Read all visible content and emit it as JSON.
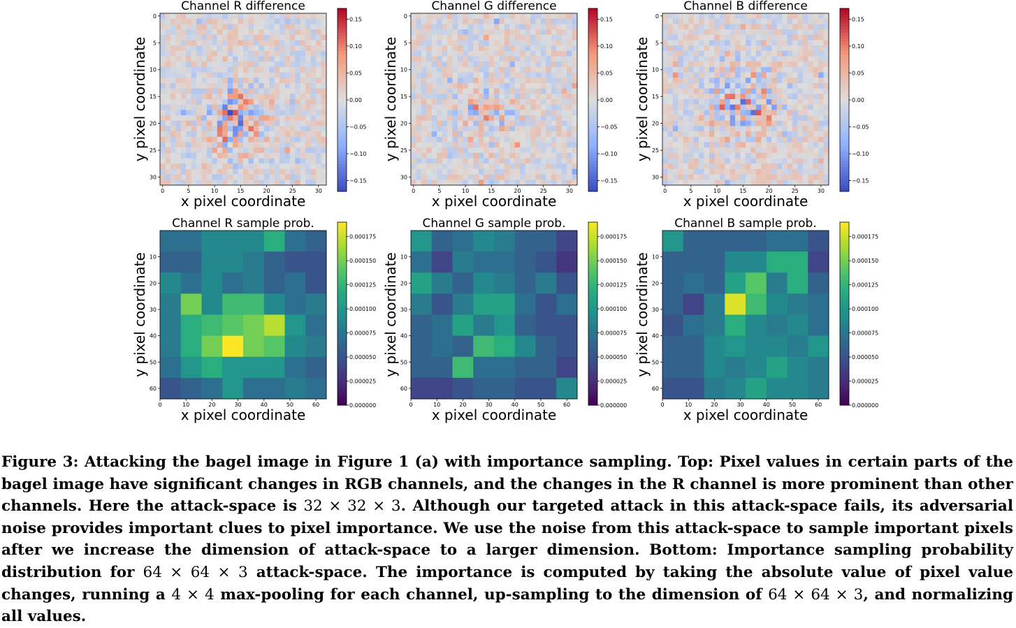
{
  "charts": [
    {
      "title": "Channel R difference",
      "xlabel": "x pixel coordinate",
      "ylabel": "y pixel coordinate"
    },
    {
      "title": "Channel G difference",
      "xlabel": "x pixel coordinate",
      "ylabel": "y pixel coordinate"
    },
    {
      "title": "Channel B difference",
      "xlabel": "x pixel coordinate",
      "ylabel": "y pixel coordinate"
    },
    {
      "title": "Channel R sample prob.",
      "xlabel": "x pixel coordinate",
      "ylabel": "y pixel coordinate"
    },
    {
      "title": "Channel G sample prob.",
      "xlabel": "x pixel coordinate",
      "ylabel": "y pixel coordinate"
    },
    {
      "title": "Channel B sample prob.",
      "xlabel": "x pixel coordinate",
      "ylabel": "y pixel coordinate"
    }
  ],
  "chart_data": [
    {
      "type": "heatmap",
      "title": "Channel R difference",
      "xlabel": "x pixel coordinate",
      "ylabel": "y pixel coordinate",
      "grid_size": 32,
      "colormap": "coolwarm",
      "vmin": -0.17,
      "vmax": 0.17,
      "xticks": [
        "0",
        "5",
        "10",
        "15",
        "20",
        "25",
        "30"
      ],
      "yticks": [
        "0",
        "5",
        "10",
        "15",
        "20",
        "25",
        "30"
      ],
      "colorbar_ticks": [
        "0.15",
        "0.10",
        "0.05",
        "0.00",
        "−0.05",
        "−0.10",
        "−0.15"
      ],
      "colorbar_values": [
        0.15,
        0.1,
        0.05,
        0.0,
        -0.05,
        -0.1,
        -0.15
      ],
      "grid": false
    },
    {
      "type": "heatmap",
      "title": "Channel G difference",
      "xlabel": "x pixel coordinate",
      "ylabel": "y pixel coordinate",
      "grid_size": 32,
      "colormap": "coolwarm",
      "vmin": -0.17,
      "vmax": 0.17,
      "xticks": [
        "0",
        "5",
        "10",
        "15",
        "20",
        "25",
        "30"
      ],
      "yticks": [
        "0",
        "5",
        "10",
        "15",
        "20",
        "25",
        "30"
      ],
      "colorbar_ticks": [
        "0.15",
        "0.10",
        "0.05",
        "0.00",
        "−0.05",
        "−0.10",
        "−0.15"
      ],
      "colorbar_values": [
        0.15,
        0.1,
        0.05,
        0.0,
        -0.05,
        -0.1,
        -0.15
      ],
      "grid": false
    },
    {
      "type": "heatmap",
      "title": "Channel B difference",
      "xlabel": "x pixel coordinate",
      "ylabel": "y pixel coordinate",
      "grid_size": 32,
      "colormap": "coolwarm",
      "vmin": -0.17,
      "vmax": 0.17,
      "xticks": [
        "0",
        "5",
        "10",
        "15",
        "20",
        "25",
        "30"
      ],
      "yticks": [
        "0",
        "5",
        "10",
        "15",
        "20",
        "25",
        "30"
      ],
      "colorbar_ticks": [
        "0.15",
        "0.10",
        "0.05",
        "0.00",
        "−0.05",
        "−0.10",
        "−0.15"
      ],
      "colorbar_values": [
        0.15,
        0.1,
        0.05,
        0.0,
        -0.05,
        -0.1,
        -0.15
      ],
      "grid": false
    },
    {
      "type": "heatmap",
      "title": "Channel R sample prob.",
      "xlabel": "x pixel coordinate",
      "ylabel": "y pixel coordinate",
      "colormap": "viridis",
      "vmin": 0,
      "vmax": 0.00019,
      "extent": [
        0,
        64
      ],
      "xticks": [
        "0",
        "10",
        "20",
        "30",
        "40",
        "50",
        "60"
      ],
      "yticks": [
        "10",
        "20",
        "30",
        "40",
        "50",
        "60"
      ],
      "colorbar_ticks": [
        "0.000175",
        "0.000150",
        "0.000125",
        "0.000100",
        "0.000075",
        "0.000050",
        "0.000025",
        "0.000000"
      ],
      "colorbar_values": [
        0.000175,
        0.00015,
        0.000125,
        0.0001,
        7.5e-05,
        5e-05,
        2.5e-05,
        0
      ],
      "grid": false,
      "values": [
        [
          7e-05,
          7e-05,
          9e-05,
          9e-05,
          9e-05,
          0.00012,
          7e-05,
          6e-05
        ],
        [
          6e-05,
          6e-05,
          9e-05,
          9e-05,
          8e-05,
          6e-05,
          5e-05,
          5e-05
        ],
        [
          9e-05,
          7e-05,
          9e-05,
          7e-05,
          8e-05,
          6e-05,
          7e-05,
          5e-05
        ],
        [
          8e-05,
          0.00015,
          9e-05,
          0.00013,
          0.00013,
          9e-05,
          7e-05,
          8e-05
        ],
        [
          8e-05,
          0.00012,
          0.00013,
          0.00014,
          0.00015,
          0.00017,
          0.0001,
          7e-05
        ],
        [
          8e-05,
          0.00012,
          0.00015,
          0.00019,
          0.00015,
          0.00014,
          9e-05,
          8e-05
        ],
        [
          7e-05,
          0.0001,
          0.00012,
          0.0001,
          0.0001,
          0.0001,
          7e-05,
          6e-05
        ],
        [
          5e-05,
          6e-05,
          7e-05,
          0.0001,
          7e-05,
          7e-05,
          8e-05,
          7e-05
        ]
      ]
    },
    {
      "type": "heatmap",
      "title": "Channel G sample prob.",
      "xlabel": "x pixel coordinate",
      "ylabel": "y pixel coordinate",
      "colormap": "viridis",
      "vmin": 0,
      "vmax": 0.00019,
      "extent": [
        0,
        64
      ],
      "xticks": [
        "0",
        "10",
        "20",
        "30",
        "40",
        "50",
        "60"
      ],
      "yticks": [
        "10",
        "20",
        "30",
        "40",
        "50",
        "60"
      ],
      "colorbar_ticks": [
        "0.000175",
        "0.000150",
        "0.000125",
        "0.000100",
        "0.000075",
        "0.000050",
        "0.000025",
        "0.000000"
      ],
      "colorbar_values": [
        0.000175,
        0.00015,
        0.000125,
        0.0001,
        7.5e-05,
        5e-05,
        2.5e-05,
        0
      ],
      "grid": false,
      "values": [
        [
          0.0001,
          6e-05,
          7e-05,
          9e-05,
          8e-05,
          6e-05,
          6e-05,
          4e-05
        ],
        [
          7e-05,
          4e-05,
          8e-05,
          7e-05,
          7e-05,
          6e-05,
          5e-05,
          3e-05
        ],
        [
          0.00011,
          8e-05,
          6e-05,
          9e-05,
          8e-05,
          6e-05,
          8e-05,
          5e-05
        ],
        [
          8e-05,
          5e-05,
          8e-05,
          0.00011,
          0.00011,
          7e-05,
          5e-05,
          7e-05
        ],
        [
          6e-05,
          7e-05,
          0.00011,
          8e-05,
          0.0001,
          6e-05,
          5e-05,
          5e-05
        ],
        [
          6e-05,
          7e-05,
          6e-05,
          0.00013,
          0.00012,
          9e-05,
          6e-05,
          5e-05
        ],
        [
          6e-05,
          6e-05,
          0.00013,
          7e-05,
          7e-05,
          6e-05,
          6e-05,
          4e-05
        ],
        [
          4e-05,
          4e-05,
          5e-05,
          6e-05,
          6e-05,
          5e-05,
          5e-05,
          9e-05
        ]
      ]
    },
    {
      "type": "heatmap",
      "title": "Channel B sample prob.",
      "xlabel": "x pixel coordinate",
      "ylabel": "y pixel coordinate",
      "colormap": "viridis",
      "vmin": 0,
      "vmax": 0.00019,
      "extent": [
        0,
        64
      ],
      "xticks": [
        "0",
        "10",
        "20",
        "30",
        "40",
        "50",
        "60"
      ],
      "yticks": [
        "10",
        "20",
        "30",
        "40",
        "50",
        "60"
      ],
      "colorbar_ticks": [
        "0.000175",
        "0.000150",
        "0.000125",
        "0.000100",
        "0.000075",
        "0.000050",
        "0.000025",
        "0.000000"
      ],
      "colorbar_values": [
        0.000175,
        0.00015,
        0.000125,
        0.0001,
        7.5e-05,
        5e-05,
        2.5e-05,
        0
      ],
      "grid": false,
      "values": [
        [
          0.0001,
          6e-05,
          6e-05,
          6e-05,
          6e-05,
          7e-05,
          7e-05,
          5e-05
        ],
        [
          6e-05,
          6e-05,
          6e-05,
          9e-05,
          9e-05,
          0.00012,
          0.00012,
          4e-05
        ],
        [
          6e-05,
          7e-05,
          6e-05,
          0.00011,
          0.00014,
          8e-05,
          0.00012,
          6e-05
        ],
        [
          6e-05,
          4e-05,
          8e-05,
          0.00018,
          0.00013,
          9e-05,
          8e-05,
          7e-05
        ],
        [
          5e-05,
          7e-05,
          8e-05,
          0.00012,
          9e-05,
          8e-05,
          9e-05,
          7e-05
        ],
        [
          6e-05,
          6e-05,
          9e-05,
          0.0001,
          9e-05,
          9e-05,
          8e-05,
          0.0001
        ],
        [
          6e-05,
          6e-05,
          9e-05,
          8e-05,
          9e-05,
          0.00011,
          9e-05,
          8e-05
        ],
        [
          5e-05,
          5e-05,
          8e-05,
          9e-05,
          0.00011,
          9e-05,
          9e-05,
          8e-05
        ]
      ]
    }
  ],
  "caption": {
    "s1": "Figure 3: Attacking the bagel image in Figure 1 (a) with importance sampling. Top: Pixel values in certain parts of the bagel image have significant changes in RGB channels, and the changes in the R channel is more prominent than other channels. Here the attack-space is ",
    "m1": "32 × 32 × 3",
    "s2": ". Although our targeted attack in this attack-space fails, its adversarial noise provides important clues to pixel importance. We use the noise from this attack-space to sample important pixels after we increase the dimension of attack-space to a larger dimension. Bottom: Importance sampling probability distribution for ",
    "m2": "64 × 64 × 3",
    "s3": " attack-space. The importance is computed by taking the absolute value of pixel value changes, running a ",
    "m3": "4 × 4",
    "s4": " max-pooling for each channel, up-sampling to the dimension of ",
    "m4": "64 × 64 × 3",
    "s5": ", and normalizing all values."
  }
}
